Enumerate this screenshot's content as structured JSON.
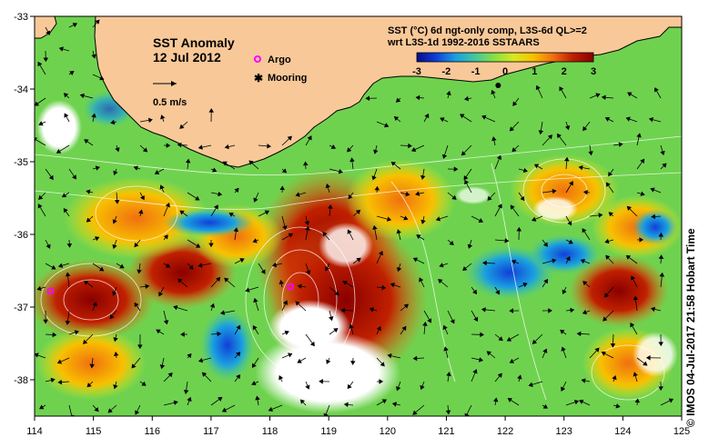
{
  "title": {
    "line1": "SST Anomaly",
    "line2": "12 Jul 2012"
  },
  "vector_scale_label": "0.5 m/s",
  "legend": {
    "argo_label": "Argo",
    "mooring_label": "Mooring",
    "argo_color": "#ff00ff",
    "mooring_color": "#000000"
  },
  "colorbar": {
    "title_line1": "SST (°C) 6d ngt-only comp, L3S-6d QL>=2",
    "title_line2": "wrt L3S-1d 1992-2016 SSTAARS",
    "ticks": [
      "-3",
      "-2",
      "-1",
      "0",
      "1",
      "2",
      "3"
    ],
    "colors": [
      "#0a0a8c",
      "#1040d8",
      "#1aa0e0",
      "#40c8a0",
      "#88e040",
      "#d8e820",
      "#f8c000",
      "#f07010",
      "#c02000",
      "#8a0000"
    ]
  },
  "axes": {
    "x_ticks": [
      "114",
      "115",
      "116",
      "117",
      "118",
      "119",
      "120",
      "121",
      "122",
      "123",
      "124",
      "125"
    ],
    "y_ticks": [
      "-33",
      "-34",
      "-35",
      "-36",
      "-37",
      "-38"
    ],
    "lon_range": [
      114,
      125
    ],
    "lat_range": [
      -38.5,
      -33
    ]
  },
  "markers": {
    "argo": [
      [
        114.27,
        -36.78
      ],
      [
        118.35,
        -36.72
      ]
    ],
    "mooring": [
      [
        121.88,
        -33.95
      ]
    ]
  },
  "credit_text": "© IMOS 04-Jul-2017 21:58 Hobart Time",
  "colors": {
    "land": "#f8c898",
    "frame": "#000000"
  }
}
